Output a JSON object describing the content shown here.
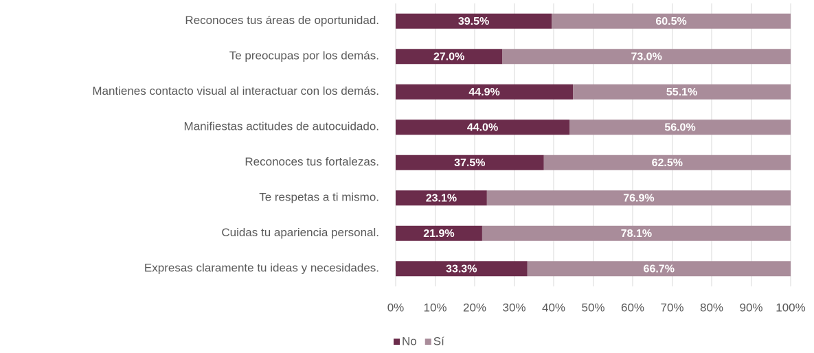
{
  "chart_data": {
    "type": "stacked_bar_horizontal",
    "categories": [
      "Reconoces tus áreas de oportunidad.",
      "Te preocupas por los demás.",
      "Mantienes contacto visual al interactuar con los demás.",
      "Manifiestas actitudes de autocuidado.",
      "Reconoces tus fortalezas.",
      "Te respetas a ti mismo.",
      "Cuidas tu apariencia personal.",
      "Expresas claramente tu ideas y necesidades."
    ],
    "series": [
      {
        "name": "No",
        "color": "#6b2c4b",
        "values": [
          39.5,
          27.0,
          44.9,
          44.0,
          37.5,
          23.1,
          21.9,
          33.3
        ],
        "value_labels": [
          "39.5%",
          "27.0%",
          "44.9%",
          "44.0%",
          "37.5%",
          "23.1%",
          "21.9%",
          "33.3%"
        ]
      },
      {
        "name": "Sí",
        "color": "#a98c9a",
        "values": [
          60.5,
          73.0,
          55.1,
          56.0,
          62.5,
          76.9,
          78.1,
          66.7
        ],
        "value_labels": [
          "60.5%",
          "73.0%",
          "55.1%",
          "56.0%",
          "62.5%",
          "76.9%",
          "78.1%",
          "66.7%"
        ]
      }
    ],
    "xlim": [
      0,
      100
    ],
    "xticks": [
      {
        "value": 0,
        "label": "0%"
      },
      {
        "value": 10,
        "label": "10%"
      },
      {
        "value": 20,
        "label": "20%"
      },
      {
        "value": 30,
        "label": "30%"
      },
      {
        "value": 40,
        "label": "40%"
      },
      {
        "value": 50,
        "label": "50%"
      },
      {
        "value": 60,
        "label": "60%"
      },
      {
        "value": 70,
        "label": "70%"
      },
      {
        "value": 80,
        "label": "80%"
      },
      {
        "value": 90,
        "label": "90%"
      },
      {
        "value": 100,
        "label": "100%"
      }
    ],
    "grid": true,
    "legend": "bottom"
  }
}
